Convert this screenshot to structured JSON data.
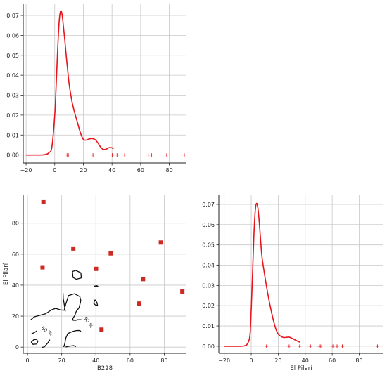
{
  "colors": {
    "density": "#e8141c",
    "points": "#cc2a22",
    "rug": "#e8141c",
    "grid": "#c8c8c8",
    "contour": "#111111",
    "axis": "#222222"
  },
  "chart_data": [
    {
      "id": "top",
      "type": "line",
      "description_role": "kernel density of B228 with rug",
      "xlabel": "",
      "ylabel": "",
      "xlim": [
        -22,
        92
      ],
      "ylim": [
        -0.004,
        0.076
      ],
      "xticks": [
        -20,
        0,
        20,
        40,
        60,
        80
      ],
      "xtick_labels": [
        "−20",
        "0",
        "20",
        "40",
        "60",
        "80"
      ],
      "yticks": [
        0,
        0.01,
        0.02,
        0.03,
        0.04,
        0.05,
        0.06,
        0.07
      ],
      "ytick_labels": [
        "0.00",
        "0.01",
        "0.02",
        "0.03",
        "0.04",
        "0.05",
        "0.06",
        "0.07"
      ],
      "grid": true,
      "curve": {
        "x": [
          -20,
          -10,
          -6,
          -4,
          -2,
          0,
          1,
          2,
          3,
          4,
          5,
          6,
          7,
          8,
          9,
          10,
          12,
          14,
          16,
          18,
          20,
          22,
          24,
          26,
          28,
          30,
          32,
          34,
          36,
          38,
          40,
          41
        ],
        "y": [
          0,
          0,
          0.0003,
          0.0012,
          0.004,
          0.02,
          0.035,
          0.052,
          0.066,
          0.072,
          0.071,
          0.065,
          0.058,
          0.05,
          0.043,
          0.036,
          0.027,
          0.021,
          0.016,
          0.011,
          0.0078,
          0.0075,
          0.008,
          0.0082,
          0.0078,
          0.0062,
          0.004,
          0.0028,
          0.003,
          0.0037,
          0.0036,
          0.003
        ]
      },
      "rug": [
        8.6,
        9.5,
        26.7,
        40.2,
        43.5,
        48.8,
        65.3,
        67.6,
        78.2,
        90.5
      ]
    },
    {
      "id": "bottom-left",
      "type": "scatter",
      "description_role": "scatter with density contours",
      "xlabel": "B228",
      "ylabel": "El Pilarí",
      "xlim": [
        -2.5,
        93
      ],
      "ylim": [
        -4,
        98
      ],
      "xticks": [
        0,
        20,
        40,
        60,
        80
      ],
      "xtick_labels": [
        "0",
        "20",
        "40",
        "60",
        "80"
      ],
      "yticks": [
        0,
        20,
        40,
        60,
        80
      ],
      "ytick_labels": [
        "0",
        "20",
        "40",
        "60",
        "80"
      ],
      "grid": true,
      "points": [
        {
          "x": 9.3,
          "y": 93.5
        },
        {
          "x": 8.8,
          "y": 51.5
        },
        {
          "x": 26.8,
          "y": 63.6
        },
        {
          "x": 40.1,
          "y": 50.5
        },
        {
          "x": 48.7,
          "y": 60.5
        },
        {
          "x": 78.0,
          "y": 67.5
        },
        {
          "x": 67.6,
          "y": 43.9
        },
        {
          "x": 65.3,
          "y": 28.1
        },
        {
          "x": 43.3,
          "y": 11.3
        },
        {
          "x": 90.6,
          "y": 35.9
        }
      ],
      "contours": [
        {
          "level": "50 %",
          "closed": true,
          "x": [
            2.2,
            3.7,
            5.4,
            6.0,
            5.3,
            3.2,
            2.2
          ],
          "y": [
            3.2,
            4.8,
            5.0,
            3.5,
            2.0,
            1.8,
            3.2
          ]
        },
        {
          "level": "50 %",
          "closed": false,
          "x": [
            2.3,
            4.5,
            5.5
          ],
          "y": [
            8.5,
            9.7,
            10.5
          ]
        },
        {
          "level": "50 %",
          "closed": false,
          "x": [
            8.3,
            9.9,
            11.8,
            13.1
          ],
          "y": [
            -0.2,
            0.2,
            2.6,
            4.8
          ]
        },
        {
          "level": "90 %",
          "closed": false,
          "x": [
            1.8,
            3.9,
            7.0,
            10.5,
            14.0,
            16.5,
            19.2,
            21.5,
            22.3,
            24.0,
            27.5,
            30.6,
            31.2,
            30.2,
            28.5,
            27.6,
            26.5,
            26.7,
            28.3,
            29.1,
            31.5
          ],
          "y": [
            17.5,
            19.5,
            20.5,
            21.5,
            24.0,
            25.0,
            24.0,
            23.8,
            27.5,
            33.3,
            34.5,
            32.6,
            30.0,
            25.5,
            23.0,
            20.3,
            18.5,
            17.3,
            17.3,
            17.7,
            17.7
          ]
        },
        {
          "level": "90 %",
          "closed": false,
          "x": [
            22.1,
            21.5,
            20.9,
            20.8
          ],
          "y": [
            23.0,
            27.5,
            31.5,
            34.8
          ]
        },
        {
          "level": "90 %",
          "closed": true,
          "x": [
            26.3,
            28.2,
            31.2,
            31.5,
            28.6,
            26.6,
            26.3
          ],
          "y": [
            48.8,
            49.5,
            48.0,
            44.7,
            43.8,
            45.0,
            48.8
          ]
        },
        {
          "level": "90 %",
          "closed": true,
          "x": [
            38.7,
            39.5,
            40.6,
            41.0,
            39.7,
            38.7
          ],
          "y": [
            28.3,
            30.5,
            28.8,
            26.8,
            27.2,
            28.3
          ]
        },
        {
          "level": "90 %",
          "closed": false,
          "x": [
            38.8,
            40.6,
            41.2,
            40.1,
            39.4
          ],
          "y": [
            39.3,
            39.6,
            39.2,
            39.0,
            39.2
          ]
        },
        {
          "level": "90 %",
          "closed": false,
          "x": [
            21.2,
            21.8,
            22.4,
            23.6,
            26.7,
            28.6,
            30.5,
            31.3
          ],
          "y": [
            0.1,
            2.2,
            5.8,
            8.8,
            10.2,
            10.7,
            10.7,
            10.2
          ]
        },
        {
          "level": "90 %",
          "closed": false,
          "x": [
            22.3,
            24.3,
            27.0,
            28.3
          ],
          "y": [
            0.1,
            0.6,
            1.0,
            0.3
          ]
        }
      ],
      "contour_labels": [
        {
          "text": "50 %",
          "x": 10.8,
          "y": 9.5,
          "angle": 33
        },
        {
          "text": "90 %",
          "x": 34.9,
          "y": 15.4,
          "angle": 55
        }
      ]
    },
    {
      "id": "bottom-right",
      "type": "line",
      "description_role": "kernel density of El Pilarí with rug",
      "xlabel": "El Pilarí",
      "ylabel": "",
      "xlim": [
        -24,
        98
      ],
      "ylim": [
        -0.0035,
        0.0745
      ],
      "xticks": [
        -20,
        0,
        20,
        40,
        60,
        80
      ],
      "xtick_labels": [
        "−20",
        "0",
        "20",
        "40",
        "60",
        "80"
      ],
      "yticks": [
        0,
        0.01,
        0.02,
        0.03,
        0.04,
        0.05,
        0.06,
        0.07
      ],
      "ytick_labels": [
        "0.00",
        "0.01",
        "0.02",
        "0.03",
        "0.04",
        "0.05",
        "0.06",
        "0.07"
      ],
      "grid": true,
      "curve": {
        "x": [
          -20,
          -8,
          -5,
          -3,
          -1,
          0,
          1,
          2,
          3,
          4,
          5,
          6,
          7,
          8,
          10,
          12,
          14,
          16,
          18,
          20,
          22,
          24,
          26,
          28,
          30,
          32,
          34,
          36
        ],
        "y": [
          0,
          0,
          0.0002,
          0.001,
          0.005,
          0.018,
          0.036,
          0.055,
          0.067,
          0.0705,
          0.068,
          0.061,
          0.052,
          0.044,
          0.035,
          0.027,
          0.02,
          0.014,
          0.009,
          0.006,
          0.0049,
          0.0043,
          0.0044,
          0.0045,
          0.004,
          0.0033,
          0.0026,
          0.002
        ]
      },
      "rug": [
        11.3,
        28.1,
        35.9,
        43.9,
        50.5,
        51.5,
        60.5,
        63.6,
        67.5,
        93.5
      ]
    }
  ]
}
